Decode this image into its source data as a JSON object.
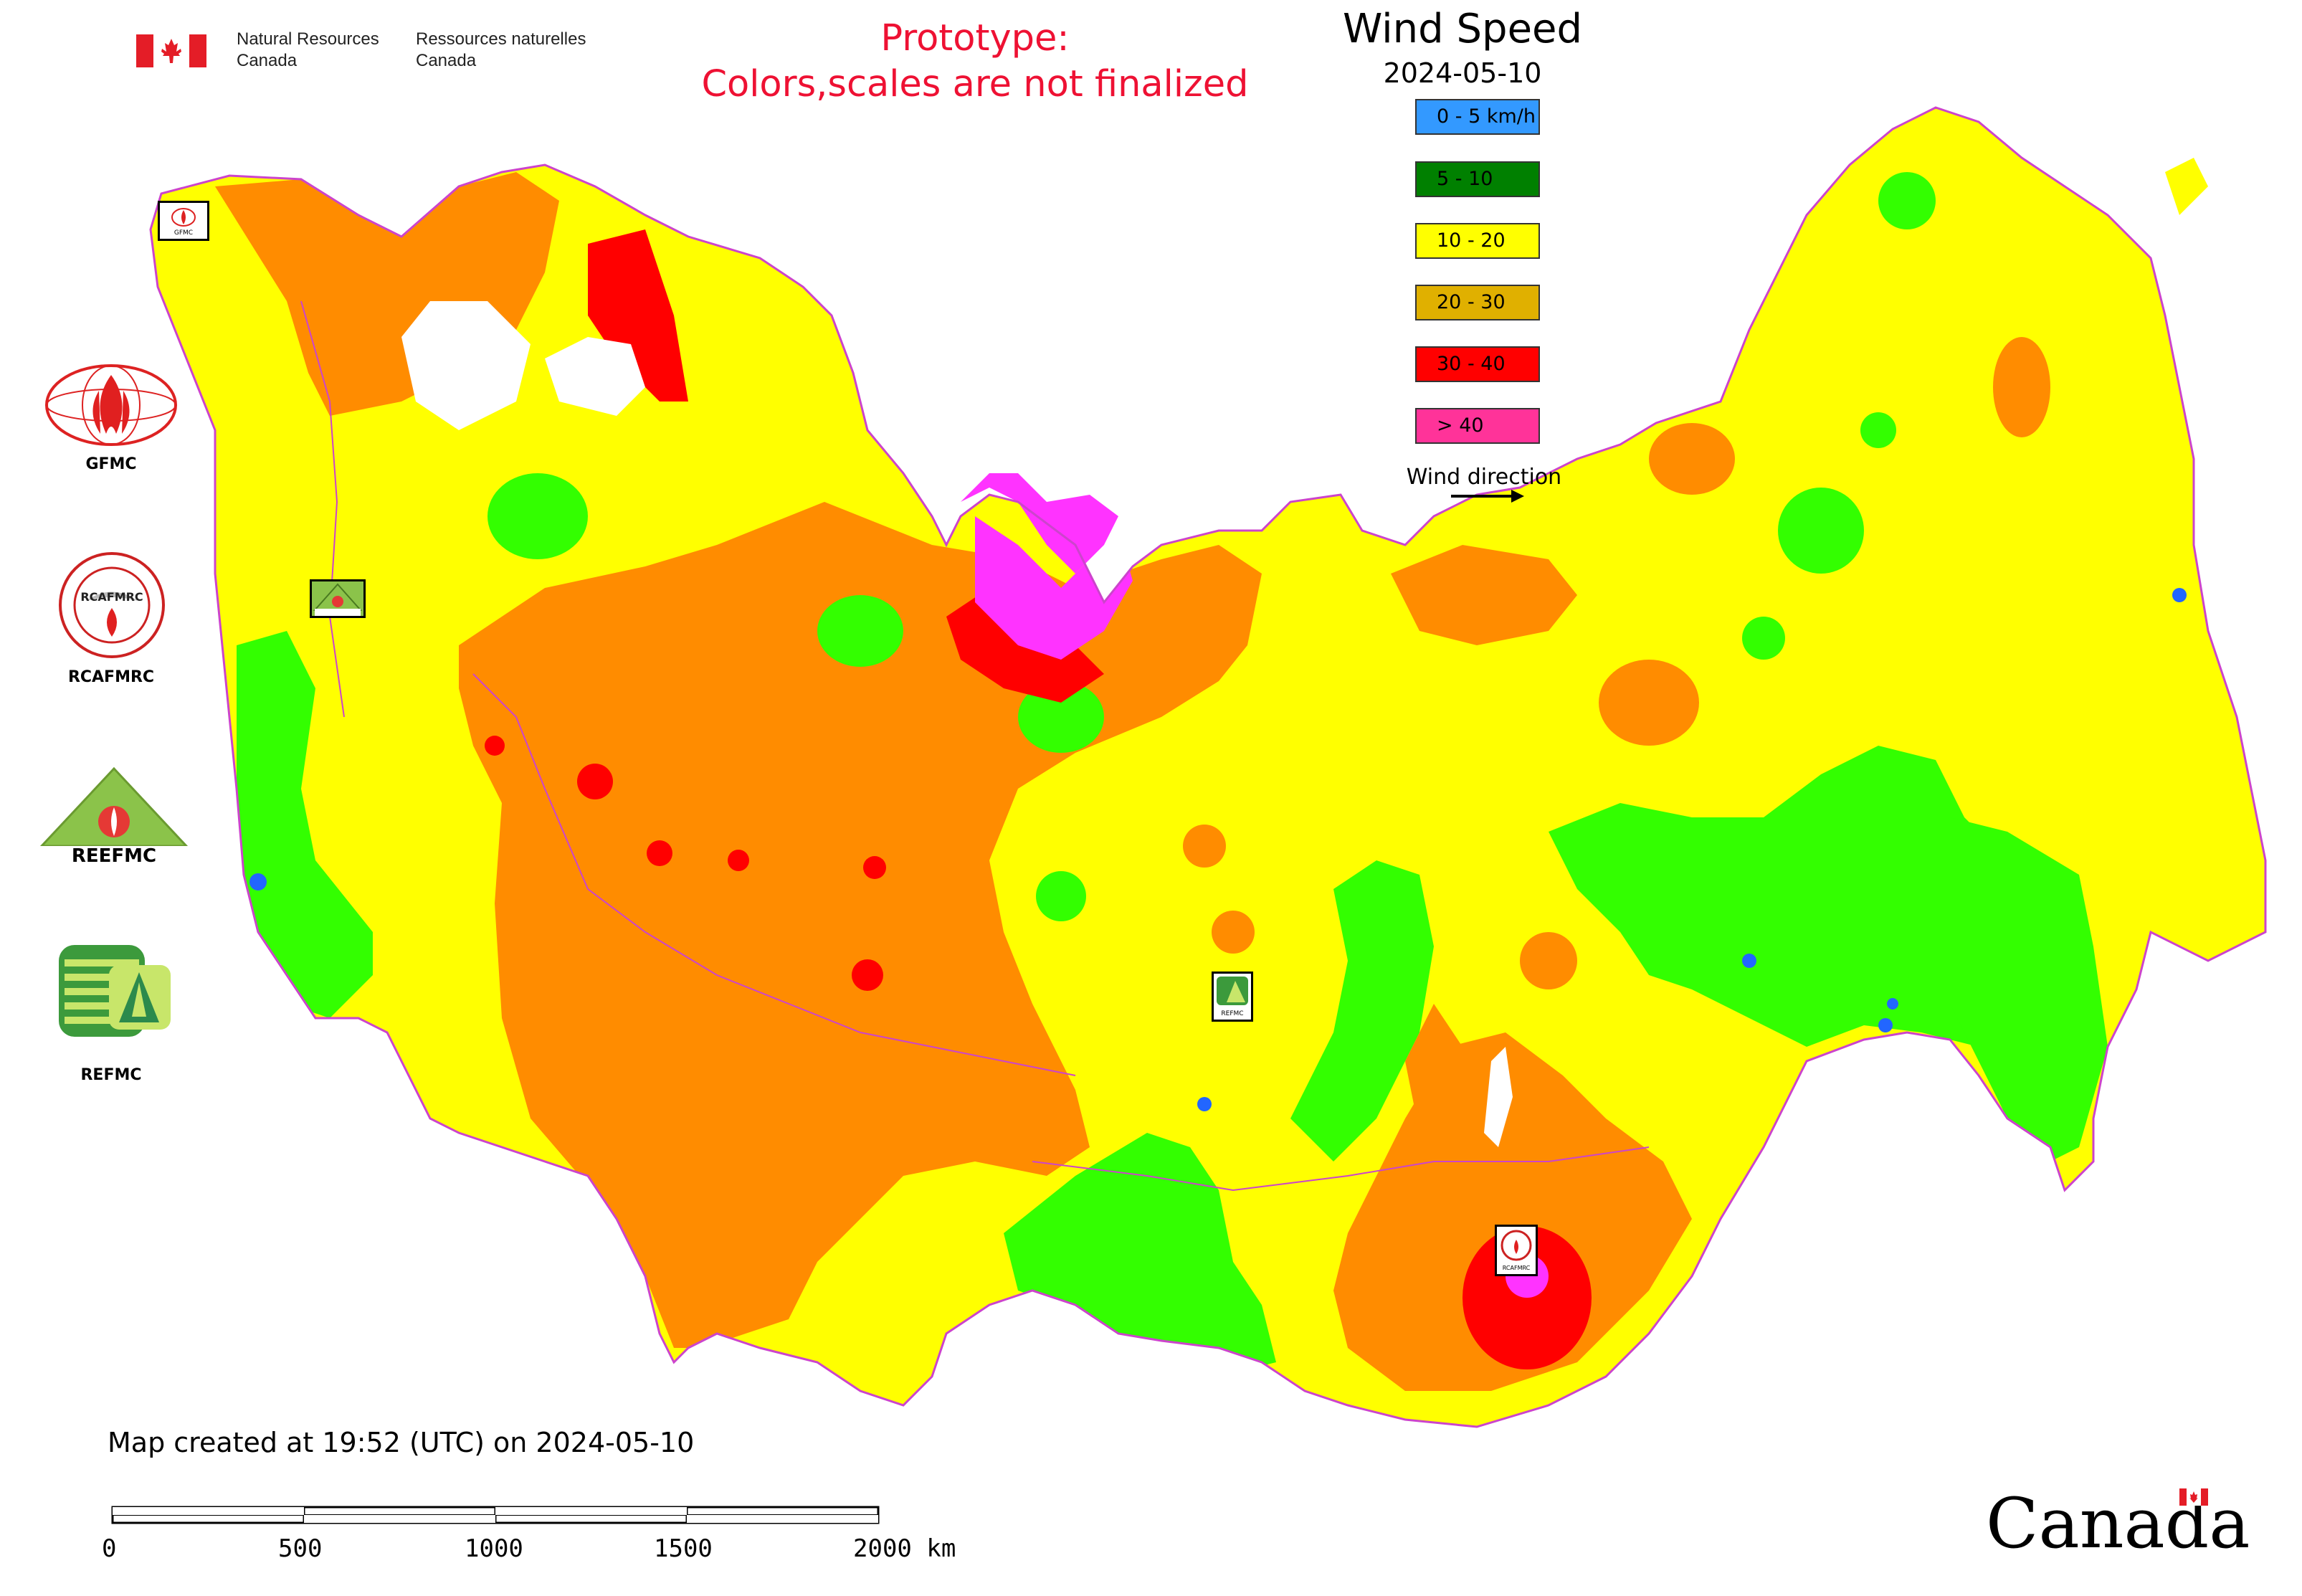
{
  "header": {
    "nrcan_en_line1": "Natural Resources",
    "nrcan_en_line2": "Canada",
    "nrcan_fr_line1": "Ressources naturelles",
    "nrcan_fr_line2": "Canada",
    "prototype_line1": "Prototype:",
    "prototype_line2": "Colors,scales are not finalized"
  },
  "legend": {
    "title": "Wind Speed",
    "date": "2024-05-10",
    "items": [
      {
        "label": "0 - 5 km/h",
        "color": "#3399ff"
      },
      {
        "label": "5 - 10",
        "color": "#008000"
      },
      {
        "label": "10 - 20",
        "color": "#ffff00"
      },
      {
        "label": "20 - 30",
        "color": "#e0b000"
      },
      {
        "label": "30 - 40",
        "color": "#ff0000"
      },
      {
        "label": "> 40",
        "color": "#ff3399"
      }
    ],
    "wind_direction_label": "Wind direction"
  },
  "centers": {
    "gfmc": "GFMC",
    "rcafmrc": "RCAFMRC",
    "reefmc_logo_text": "REEFMC",
    "refmc": "REFMC",
    "map_marker_gfmc": "GFMC",
    "map_marker_refmc": "REFMC",
    "map_marker_rcafmrc": "RCAFMRC"
  },
  "footer": {
    "created": "Map created at 19:52 (UTC) on 2024-05-10",
    "scale_ticks": [
      "0",
      "500",
      "1000",
      "1500",
      "2000 km"
    ],
    "canada_wordmark": "Canada"
  },
  "map_colors": {
    "speed_10_20": "#ffff00",
    "speed_20_30": "#ff8c00",
    "speed_30_40": "#ff0000",
    "speed_over_40": "#ff33ff",
    "speed_5_10": "#33ff00",
    "speed_0_5": "#2266ff",
    "border": "#cc44cc"
  }
}
